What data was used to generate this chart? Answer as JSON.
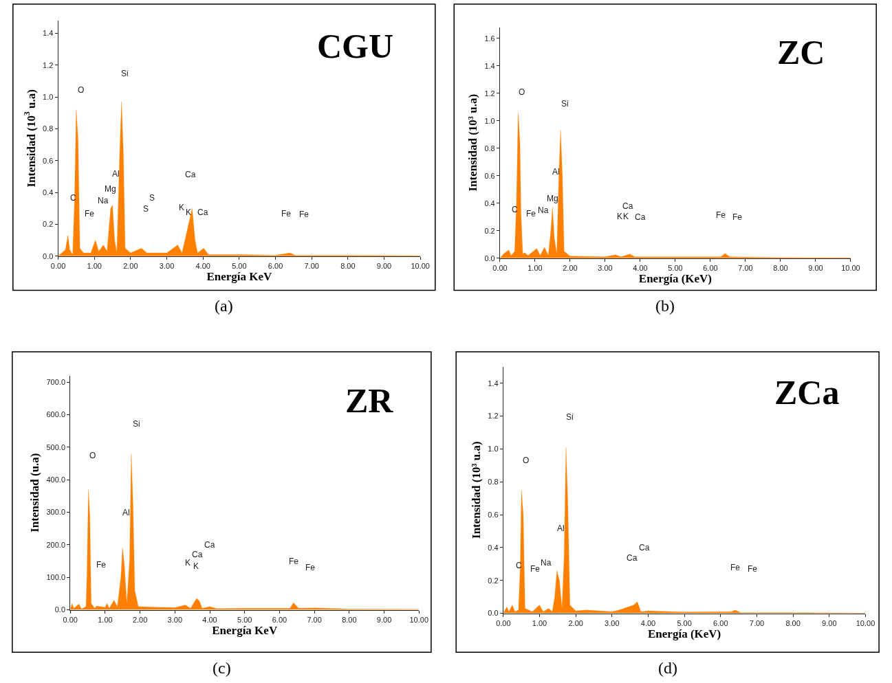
{
  "chart_data": [
    {
      "type": "area",
      "title": "CGU",
      "xlabel": "Energía KeV",
      "ylabel": "Intensidad (10$^{3}$ u.a)",
      "color": "#ff8000",
      "x": [
        0,
        0.1,
        0.2,
        0.27,
        0.32,
        0.4,
        0.45,
        0.5,
        0.55,
        0.6,
        0.7,
        0.9,
        1.03,
        1.12,
        1.25,
        1.35,
        1.45,
        1.5,
        1.56,
        1.62,
        1.7,
        1.75,
        1.8,
        1.85,
        2.0,
        2.3,
        2.45,
        3.0,
        3.3,
        3.42,
        3.6,
        3.7,
        3.78,
        3.85,
        4.02,
        4.15,
        5,
        6.0,
        6.4,
        6.55,
        8,
        10
      ],
      "values": [
        0,
        0.02,
        0.04,
        0.13,
        0.04,
        0.01,
        0.33,
        0.92,
        0.73,
        0.05,
        0.02,
        0.02,
        0.1,
        0.03,
        0.07,
        0.03,
        0.3,
        0.32,
        0.1,
        0.02,
        0.65,
        0.97,
        0.65,
        0.05,
        0.02,
        0.05,
        0.02,
        0.02,
        0.07,
        0.02,
        0.2,
        0.3,
        0.1,
        0.02,
        0.05,
        0.01,
        0.01,
        0.005,
        0.02,
        0.005,
        0.005,
        0.003
      ],
      "xlim": [
        0,
        10
      ],
      "ylim": [
        0,
        1.48
      ],
      "xticks": [
        {
          "value": 0,
          "label": "0.00"
        },
        {
          "value": 1,
          "label": "1.00"
        },
        {
          "value": 2,
          "label": "2.00"
        },
        {
          "value": 3,
          "label": "3.00"
        },
        {
          "value": 4,
          "label": "4.00"
        },
        {
          "value": 5,
          "label": "5.00"
        },
        {
          "value": 6,
          "label": "6.00"
        },
        {
          "value": 7,
          "label": "7.00"
        },
        {
          "value": 8,
          "label": "8.00"
        },
        {
          "value": 9,
          "label": "9.00"
        },
        {
          "value": 10,
          "label": "10.00"
        }
      ],
      "yticks": [
        {
          "value": 0,
          "label": "0.0"
        },
        {
          "value": 0.2,
          "label": "0.2"
        },
        {
          "value": 0.4,
          "label": "0.4"
        },
        {
          "value": 0.6,
          "label": "0.6"
        },
        {
          "value": 0.8,
          "label": "0.8"
        },
        {
          "value": 1.0,
          "label": "1.0"
        },
        {
          "value": 1.2,
          "label": "1.2"
        },
        {
          "value": 1.4,
          "label": "1.4"
        }
      ],
      "annotations": [
        "O",
        "Si",
        "Al",
        "Mg",
        "Na",
        "C",
        "Fe",
        "S",
        "S",
        "K",
        "K",
        "Ca",
        "Ca",
        "Fe",
        "Fe",
        "(a)"
      ]
    },
    {
      "type": "area",
      "title": "ZC",
      "xlabel": "Energía (KeV)",
      "ylabel": "Intensidad (10³ u.a)",
      "color": "#ff8000",
      "x": [
        0,
        0.1,
        0.25,
        0.32,
        0.42,
        0.47,
        0.52,
        0.57,
        0.6,
        0.65,
        0.7,
        0.8,
        1.05,
        1.15,
        1.27,
        1.38,
        1.45,
        1.5,
        1.55,
        1.62,
        1.68,
        1.73,
        1.78,
        1.83,
        2,
        3.0,
        3.3,
        3.45,
        3.7,
        3.85,
        5,
        6.3,
        6.42,
        6.55,
        8,
        10
      ],
      "values": [
        0,
        0.03,
        0.06,
        0.02,
        0.05,
        0.39,
        1.06,
        0.84,
        0.33,
        0.03,
        0.04,
        0.02,
        0.07,
        0.02,
        0.08,
        0.02,
        0.2,
        0.37,
        0.15,
        0.03,
        0.6,
        0.93,
        0.6,
        0.05,
        0.015,
        0.01,
        0.025,
        0.01,
        0.03,
        0.01,
        0.01,
        0.01,
        0.035,
        0.01,
        0.005,
        0.003
      ],
      "xlim": [
        0,
        10
      ],
      "ylim": [
        0,
        1.68
      ],
      "xticks": [
        {
          "value": 0,
          "label": "0.00"
        },
        {
          "value": 1,
          "label": "1.00"
        },
        {
          "value": 2,
          "label": "2.00"
        },
        {
          "value": 3,
          "label": "3.00"
        },
        {
          "value": 4,
          "label": "4.00"
        },
        {
          "value": 5,
          "label": "5.00"
        },
        {
          "value": 6,
          "label": "6.00"
        },
        {
          "value": 7,
          "label": "7.00"
        },
        {
          "value": 8,
          "label": "8.00"
        },
        {
          "value": 9,
          "label": "9.00"
        },
        {
          "value": 10,
          "label": "10.00"
        }
      ],
      "yticks": [
        {
          "value": 0,
          "label": "0.0"
        },
        {
          "value": 0.2,
          "label": "0.2"
        },
        {
          "value": 0.4,
          "label": "0.4"
        },
        {
          "value": 0.6,
          "label": "0.6"
        },
        {
          "value": 0.8,
          "label": "0.8"
        },
        {
          "value": 1.0,
          "label": "1.0"
        },
        {
          "value": 1.2,
          "label": "1.2"
        },
        {
          "value": 1.4,
          "label": "1.4"
        },
        {
          "value": 1.6,
          "label": "1.6"
        }
      ],
      "annotations": [
        "O",
        "Si",
        "Al",
        "Mg",
        "C",
        "Fe",
        "Na",
        "K",
        "K",
        "Ca",
        "Ca",
        "Fe",
        "Fe",
        "(b)"
      ]
    },
    {
      "type": "area",
      "title": "ZR",
      "xlabel": "Energía KeV",
      "ylabel": "Intensidad (u.a)",
      "color": "#ff8000",
      "x": [
        0,
        0.05,
        0.1,
        0.25,
        0.32,
        0.45,
        0.48,
        0.52,
        0.56,
        0.6,
        0.7,
        0.75,
        1.0,
        1.05,
        1.12,
        1.25,
        1.35,
        1.45,
        1.5,
        1.55,
        1.62,
        1.7,
        1.75,
        1.8,
        1.85,
        1.95,
        2.5,
        3.0,
        3.3,
        3.45,
        3.62,
        3.7,
        3.78,
        4,
        4.2,
        5,
        6.3,
        6.4,
        6.55,
        7,
        8,
        10
      ],
      "values": [
        0,
        20,
        5,
        18,
        3,
        10,
        115,
        370,
        290,
        20,
        5,
        12,
        8,
        20,
        5,
        30,
        10,
        100,
        190,
        140,
        20,
        150,
        480,
        315,
        60,
        10,
        8,
        7,
        15,
        5,
        35,
        28,
        5,
        10,
        4,
        5,
        5,
        22,
        5,
        6,
        3,
        2
      ],
      "xlim": [
        0,
        10
      ],
      "ylim": [
        0,
        720
      ],
      "xticks": [
        {
          "value": 0,
          "label": "0.00"
        },
        {
          "value": 1,
          "label": "1.00"
        },
        {
          "value": 2,
          "label": "2.00"
        },
        {
          "value": 3,
          "label": "3.00"
        },
        {
          "value": 4,
          "label": "4.00"
        },
        {
          "value": 5,
          "label": "5.00"
        },
        {
          "value": 6,
          "label": "6.00"
        },
        {
          "value": 7,
          "label": "7.00"
        },
        {
          "value": 8,
          "label": "8.00"
        },
        {
          "value": 9,
          "label": "9.00"
        },
        {
          "value": 10,
          "label": "10.00"
        }
      ],
      "yticks": [
        {
          "value": 0,
          "label": "0.0"
        },
        {
          "value": 100,
          "label": "100.0"
        },
        {
          "value": 200,
          "label": "200.0"
        },
        {
          "value": 300,
          "label": "300.0"
        },
        {
          "value": 400,
          "label": "400.0"
        },
        {
          "value": 500,
          "label": "500.0"
        },
        {
          "value": 600,
          "label": "600.0"
        },
        {
          "value": 700,
          "label": "700.0"
        }
      ],
      "annotations": [
        "Si",
        "O",
        "Al",
        "Fe",
        "K",
        "K",
        "Ca",
        "Ca",
        "Fe",
        "Fe",
        "(c)"
      ]
    },
    {
      "type": "area",
      "title": "ZCa",
      "xlabel": "Energía (KeV)",
      "ylabel": "Intensidad (10³ u.a)",
      "color": "#ff8000",
      "x": [
        0,
        0.1,
        0.15,
        0.25,
        0.32,
        0.42,
        0.47,
        0.5,
        0.55,
        0.6,
        0.7,
        0.8,
        1.0,
        1.1,
        1.25,
        1.35,
        1.42,
        1.48,
        1.55,
        1.62,
        1.68,
        1.73,
        1.78,
        1.84,
        2,
        2.3,
        3.0,
        3.2,
        3.6,
        3.7,
        3.8,
        4,
        5,
        6.3,
        6.4,
        6.55,
        8,
        10
      ],
      "values": [
        0,
        0.04,
        0.01,
        0.05,
        0.01,
        0.02,
        0.3,
        0.75,
        0.6,
        0.03,
        0.02,
        0.01,
        0.05,
        0.01,
        0.03,
        0.01,
        0.1,
        0.26,
        0.2,
        0.03,
        0.35,
        1.01,
        0.68,
        0.05,
        0.015,
        0.02,
        0.01,
        0.02,
        0.05,
        0.07,
        0.01,
        0.015,
        0.008,
        0.01,
        0.02,
        0.005,
        0.005,
        0.002
      ],
      "xlim": [
        0,
        10
      ],
      "ylim": [
        0,
        1.5
      ],
      "xticks": [
        {
          "value": 0,
          "label": "0.00"
        },
        {
          "value": 1,
          "label": "1.00"
        },
        {
          "value": 2,
          "label": "2.00"
        },
        {
          "value": 3,
          "label": "3.00"
        },
        {
          "value": 4,
          "label": "4.00"
        },
        {
          "value": 5,
          "label": "5.00"
        },
        {
          "value": 6,
          "label": "6.00"
        },
        {
          "value": 7,
          "label": "7.00"
        },
        {
          "value": 8,
          "label": "8.00"
        },
        {
          "value": 9,
          "label": "9.00"
        },
        {
          "value": 10,
          "label": "10.00"
        }
      ],
      "yticks": [
        {
          "value": 0,
          "label": "0.0"
        },
        {
          "value": 0.2,
          "label": "0.2"
        },
        {
          "value": 0.4,
          "label": "0.4"
        },
        {
          "value": 0.6,
          "label": "0.6"
        },
        {
          "value": 0.8,
          "label": "0.8"
        },
        {
          "value": 1.0,
          "label": "1.0"
        },
        {
          "value": 1.2,
          "label": "1.2"
        },
        {
          "value": 1.4,
          "label": "1.4"
        }
      ],
      "annotations": [
        "Si",
        "O",
        "Al",
        "C",
        "Fe",
        "Na",
        "Ca",
        "Ca",
        "Fe",
        "Fe",
        "(d)"
      ]
    }
  ]
}
